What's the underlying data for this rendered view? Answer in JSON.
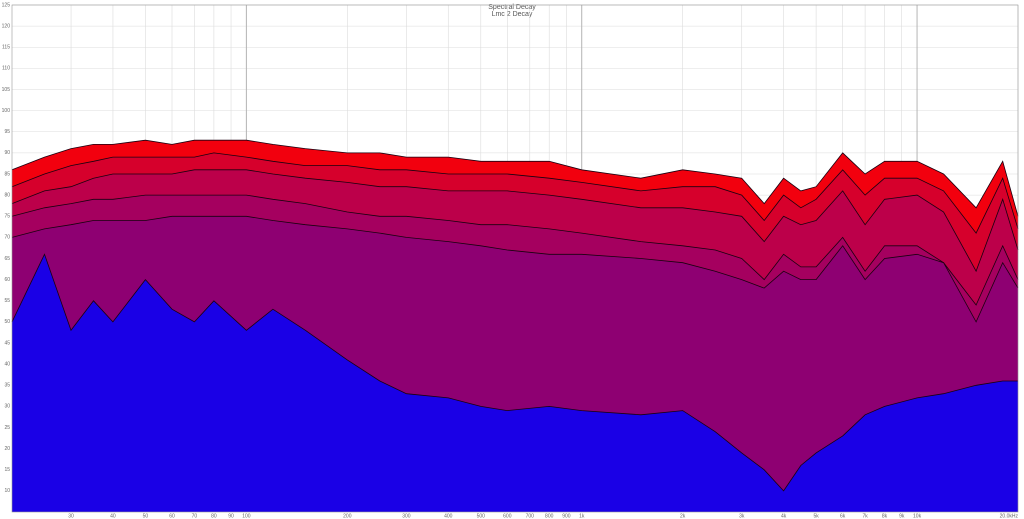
{
  "chart_data": {
    "type": "area",
    "title": "Spectral Decay",
    "subtitle": "Lmc 2 Decay",
    "log_x": true,
    "grid": true,
    "x": [
      20,
      25,
      30,
      35,
      40,
      50,
      60,
      70,
      80,
      100,
      120,
      150,
      200,
      250,
      300,
      400,
      500,
      600,
      800,
      1000,
      1500,
      2000,
      2500,
      3000,
      3500,
      4000,
      4500,
      5000,
      6000,
      7000,
      8000,
      10000,
      12000,
      15000,
      18000,
      20000
    ],
    "series": [
      {
        "color": "#f2000e",
        "values": [
          86,
          89,
          91,
          92,
          92,
          93,
          92,
          93,
          93,
          93,
          92,
          91,
          90,
          90,
          89,
          89,
          88,
          88,
          88,
          86,
          84,
          86,
          85,
          84,
          78,
          84,
          81,
          82,
          90,
          85,
          88,
          88,
          85,
          77,
          88,
          75
        ]
      },
      {
        "color": "#d6002c",
        "values": [
          82,
          85,
          87,
          88,
          89,
          89,
          89,
          89,
          90,
          89,
          88,
          87,
          87,
          86,
          86,
          85,
          85,
          85,
          84,
          83,
          81,
          82,
          82,
          80,
          74,
          80,
          77,
          79,
          86,
          80,
          84,
          84,
          81,
          71,
          84,
          72
        ]
      },
      {
        "color": "#bc004a",
        "values": [
          78,
          81,
          82,
          84,
          85,
          85,
          85,
          86,
          86,
          86,
          85,
          84,
          83,
          82,
          82,
          81,
          81,
          81,
          80,
          79,
          77,
          77,
          76,
          75,
          69,
          75,
          73,
          74,
          81,
          73,
          79,
          80,
          76,
          62,
          79,
          67
        ]
      },
      {
        "color": "#a5005f",
        "values": [
          75,
          77,
          78,
          79,
          79,
          80,
          80,
          80,
          80,
          80,
          79,
          78,
          76,
          75,
          75,
          74,
          73,
          73,
          72,
          71,
          69,
          68,
          67,
          65,
          60,
          66,
          63,
          63,
          70,
          62,
          68,
          68,
          64,
          54,
          68,
          60
        ]
      },
      {
        "color": "#8e0072",
        "values": [
          70,
          72,
          73,
          74,
          74,
          74,
          75,
          75,
          75,
          75,
          74,
          73,
          72,
          71,
          70,
          69,
          68,
          67,
          66,
          66,
          65,
          64,
          62,
          60,
          58,
          62,
          60,
          60,
          68,
          60,
          65,
          66,
          64,
          50,
          64,
          58
        ]
      },
      {
        "color": "#1a00e6",
        "values": [
          50,
          66,
          48,
          55,
          50,
          60,
          53,
          50,
          55,
          48,
          53,
          48,
          41,
          36,
          33,
          32,
          30,
          29,
          30,
          29,
          28,
          29,
          24,
          19,
          15,
          10,
          16,
          19,
          23,
          28,
          30,
          32,
          33,
          35,
          36,
          36
        ]
      }
    ],
    "xlim": [
      20,
      20000
    ],
    "ylim": [
      5,
      125
    ],
    "xticks": [
      30,
      40,
      50,
      60,
      70,
      80,
      90,
      100,
      200,
      300,
      400,
      500,
      600,
      700,
      800,
      900,
      {
        "value": 1000,
        "label": "1k"
      },
      {
        "value": 2000,
        "label": "2k"
      },
      {
        "value": 3000,
        "label": "3k"
      },
      {
        "value": 4000,
        "label": "4k"
      },
      {
        "value": 5000,
        "label": "5k"
      },
      {
        "value": 6000,
        "label": "6k"
      },
      {
        "value": 7000,
        "label": "7k"
      },
      {
        "value": 8000,
        "label": "8k"
      },
      {
        "value": 9000,
        "label": "9k"
      },
      {
        "value": 10000,
        "label": "10k"
      },
      {
        "value": 20000,
        "label": "20.0kHz"
      }
    ],
    "yticks": [
      10,
      15,
      20,
      25,
      30,
      35,
      40,
      45,
      50,
      55,
      60,
      65,
      70,
      75,
      80,
      85,
      90,
      95,
      100,
      105,
      110,
      115,
      120,
      125
    ]
  }
}
